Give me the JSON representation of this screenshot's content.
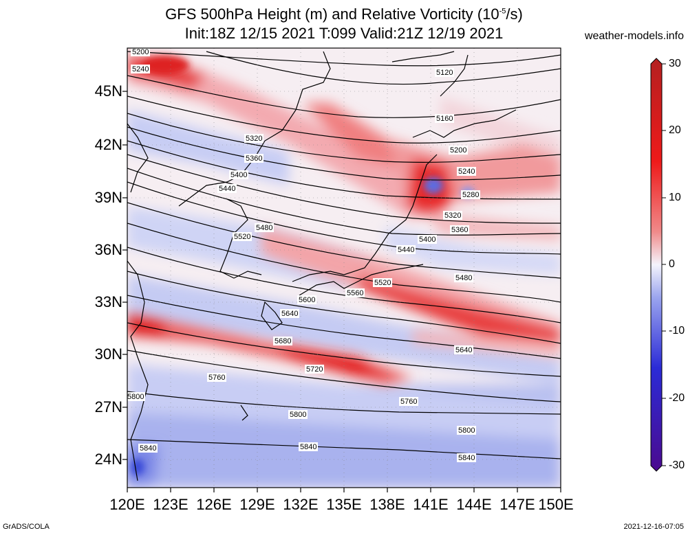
{
  "title": {
    "line1_prefix": "GFS 500hPa Height (m) and Relative Vorticity (10",
    "line1_exp": "-5",
    "line1_suffix": "/s)",
    "line2": "Init:18Z 12/15 2021 T:099 Valid:21Z 12/19 2021"
  },
  "site": "weather-models.info",
  "axes": {
    "lat_labels": [
      "45N",
      "42N",
      "39N",
      "36N",
      "33N",
      "30N",
      "27N",
      "24N"
    ],
    "lon_labels": [
      "120E",
      "123E",
      "126E",
      "129E",
      "132E",
      "135E",
      "138E",
      "141E",
      "144E",
      "147E",
      "150E"
    ]
  },
  "colorbar": {
    "labels": [
      "30",
      "20",
      "10",
      "0",
      "-10",
      "-20",
      "-30"
    ],
    "colors": [
      "#4b0a8f",
      "#2b2bd6",
      "#6d7ee8",
      "#f4f4fc",
      "#f08a8a",
      "#ee1a1a",
      "#b42020"
    ]
  },
  "contours": [
    {
      "label": "5120"
    },
    {
      "label": "5160"
    },
    {
      "label": "5200"
    },
    {
      "label": "5240"
    },
    {
      "label": "5280"
    },
    {
      "label": "5320"
    },
    {
      "label": "5360"
    },
    {
      "label": "5400"
    },
    {
      "label": "5440"
    },
    {
      "label": "5480"
    },
    {
      "label": "5520"
    },
    {
      "label": "5560"
    },
    {
      "label": "5600"
    },
    {
      "label": "5640"
    },
    {
      "label": "5680"
    },
    {
      "label": "5720"
    },
    {
      "label": "5760"
    },
    {
      "label": "5800"
    },
    {
      "label": "5840"
    }
  ],
  "footer": {
    "left": "GrADS/COLA",
    "right": "2021-12-16-07:05"
  }
}
